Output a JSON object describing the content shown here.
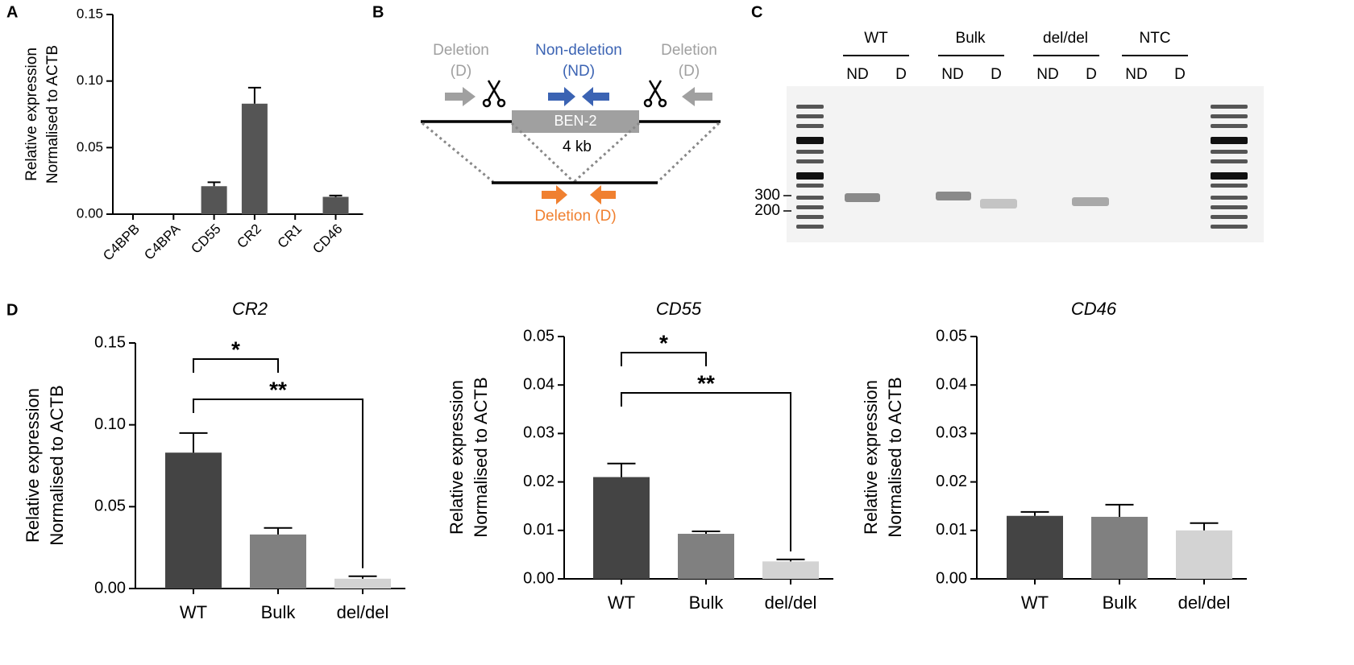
{
  "panel_labels": [
    "A",
    "B",
    "C",
    "D"
  ],
  "chart_data": [
    {
      "type": "bar",
      "ylabel": [
        "Relative expression",
        "Normalised to ACTB"
      ],
      "categories": [
        "C4BPB",
        "C4BPA",
        "CD55",
        "CR2",
        "CR1",
        "CD46"
      ],
      "values": [
        0,
        0,
        0.021,
        0.083,
        0,
        0.013
      ],
      "errors": [
        null,
        null,
        0.003,
        0.012,
        null,
        0.001
      ],
      "colors": [
        "#555555",
        "#555555",
        "#555555",
        "#555555",
        "#555555",
        "#555555"
      ],
      "ylim": [
        0,
        0.15
      ],
      "yticks": [
        {
          "value": 0,
          "label": "0.00"
        },
        {
          "value": 0.05,
          "label": "0.05"
        },
        {
          "value": 0.1,
          "label": "0.10"
        },
        {
          "value": 0.15,
          "label": "0.15"
        }
      ]
    },
    {
      "type": "bar",
      "title": "CR2",
      "ylabel": [
        "Relative expression",
        "Normalised to ACTB"
      ],
      "categories": [
        "WT",
        "Bulk",
        "del/del"
      ],
      "values": [
        0.083,
        0.033,
        0.006
      ],
      "errors": [
        0.012,
        0.004,
        0.0015
      ],
      "colors": [
        "#444444",
        "#808080",
        "#d3d3d3"
      ],
      "ylim": [
        0,
        0.15
      ],
      "yticks": [
        {
          "value": 0,
          "label": "0.00"
        },
        {
          "value": 0.05,
          "label": "0.05"
        },
        {
          "value": 0.1,
          "label": "0.10"
        },
        {
          "value": 0.15,
          "label": "0.15"
        }
      ],
      "annotations": [
        {
          "text": "*",
          "from": 0,
          "to": 1
        },
        {
          "text": "**",
          "from": 0,
          "to": 2
        }
      ]
    },
    {
      "type": "bar",
      "title": "CD55",
      "ylabel": [
        "Relative expression",
        "Normalised to ACTB"
      ],
      "categories": [
        "WT",
        "Bulk",
        "del/del"
      ],
      "values": [
        0.021,
        0.0093,
        0.0036
      ],
      "errors": [
        0.0028,
        0.0005,
        0.0004
      ],
      "colors": [
        "#444444",
        "#808080",
        "#d3d3d3"
      ],
      "ylim": [
        0,
        0.05
      ],
      "yticks": [
        {
          "value": 0,
          "label": "0.00"
        },
        {
          "value": 0.01,
          "label": "0.01"
        },
        {
          "value": 0.02,
          "label": "0.02"
        },
        {
          "value": 0.03,
          "label": "0.03"
        },
        {
          "value": 0.04,
          "label": "0.04"
        },
        {
          "value": 0.05,
          "label": "0.05"
        }
      ],
      "annotations": [
        {
          "text": "*",
          "from": 0,
          "to": 1
        },
        {
          "text": "**",
          "from": 0,
          "to": 2
        }
      ]
    },
    {
      "type": "bar",
      "title": "CD46",
      "ylabel": [
        "Relative expression",
        "Normalised to ACTB"
      ],
      "categories": [
        "WT",
        "Bulk",
        "del/del"
      ],
      "values": [
        0.013,
        0.0128,
        0.01
      ],
      "errors": [
        0.0008,
        0.0025,
        0.0015
      ],
      "colors": [
        "#444444",
        "#808080",
        "#d3d3d3"
      ],
      "ylim": [
        0,
        0.05
      ],
      "yticks": [
        {
          "value": 0,
          "label": "0.00"
        },
        {
          "value": 0.01,
          "label": "0.01"
        },
        {
          "value": 0.02,
          "label": "0.02"
        },
        {
          "value": 0.03,
          "label": "0.03"
        },
        {
          "value": 0.04,
          "label": "0.04"
        },
        {
          "value": 0.05,
          "label": "0.05"
        }
      ]
    }
  ],
  "diagram": {
    "left_primer": [
      "Deletion",
      "(D)"
    ],
    "center_primer": [
      "Non-deletion",
      "(ND)"
    ],
    "right_primer": [
      "Deletion",
      "(D)"
    ],
    "element": "BEN-2",
    "size": "4 kb",
    "deletion_primer": "Deletion (D)"
  },
  "gel": {
    "groups": [
      "WT",
      "Bulk",
      "del/del",
      "NTC"
    ],
    "lane_labels": [
      "ND",
      "D"
    ],
    "markers": [
      "300",
      "200"
    ]
  }
}
